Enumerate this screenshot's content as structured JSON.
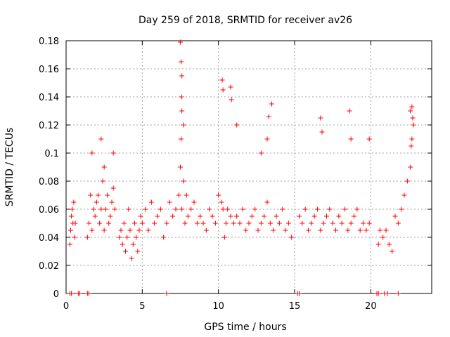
{
  "chart_data": {
    "type": "scatter",
    "title": "Day 259 of 2018, SRMTID for receiver av26",
    "xlabel": "GPS time / hours",
    "ylabel": "SRMTID / TECUs",
    "xlim": [
      0,
      24
    ],
    "ylim": [
      0,
      0.18
    ],
    "grid": true,
    "marker": "plus",
    "series_color": "#ff0000",
    "x_ticks": [
      0,
      5,
      10,
      15,
      20
    ],
    "x_tick_labels": [
      "0",
      "5",
      "10",
      "15",
      "20"
    ],
    "y_ticks": [
      0,
      0.02,
      0.04,
      0.06,
      0.08,
      0.1,
      0.12,
      0.14,
      0.16,
      0.18
    ],
    "y_tick_labels": [
      "0",
      "0.02",
      "0.04",
      "0.06",
      "0.08",
      "0.1",
      "0.12",
      "0.14",
      "0.16",
      "0.18"
    ],
    "series": [
      {
        "name": "SRMTID",
        "x": [
          0.25,
          0.3,
          0.35,
          0.4,
          0.45,
          0.5,
          0.55,
          0.6,
          1.4,
          1.5,
          1.6,
          1.7,
          1.8,
          1.9,
          2.0,
          2.1,
          2.2,
          2.3,
          2.4,
          2.5,
          2.6,
          2.7,
          2.8,
          2.9,
          3.0,
          3.1,
          3.2,
          1.7,
          2.3,
          2.5,
          3.1,
          3.5,
          3.6,
          3.7,
          3.8,
          3.9,
          4.0,
          4.1,
          4.2,
          4.3,
          4.4,
          4.5,
          4.6,
          4.7,
          4.8,
          4.9,
          5.0,
          5.2,
          5.4,
          5.6,
          5.8,
          6.0,
          6.2,
          6.4,
          6.6,
          6.8,
          7.0,
          7.2,
          7.4,
          7.5,
          7.55,
          7.6,
          7.7,
          7.8,
          7.9,
          8.0,
          8.2,
          8.4,
          8.6,
          8.8,
          7.5,
          7.55,
          7.6,
          7.58,
          7.6,
          7.7,
          9.0,
          9.2,
          9.4,
          9.6,
          9.8,
          10.0,
          10.2,
          10.3,
          10.4,
          10.5,
          10.6,
          10.8,
          11.0,
          10.25,
          10.3,
          10.8,
          10.85,
          11.2,
          11.2,
          11.4,
          11.6,
          11.8,
          12.0,
          12.2,
          12.4,
          12.6,
          12.8,
          13.0,
          13.2,
          13.4,
          13.6,
          13.8,
          14.0,
          14.2,
          14.4,
          14.6,
          14.8,
          13.3,
          13.5,
          12.8,
          13.2,
          15.3,
          15.5,
          15.7,
          15.9,
          16.1,
          16.3,
          16.5,
          16.7,
          16.9,
          17.1,
          17.3,
          17.5,
          17.7,
          17.9,
          18.1,
          18.3,
          18.5,
          18.7,
          18.9,
          19.1,
          19.3,
          19.5,
          19.7,
          19.9,
          16.7,
          16.8,
          18.6,
          18.7,
          19.9,
          20.5,
          20.6,
          20.8,
          21.0,
          21.2,
          21.4,
          21.6,
          21.8,
          22.0,
          22.2,
          22.4,
          22.6,
          22.7,
          22.8,
          22.6,
          22.7,
          22.75,
          22.65,
          0.25,
          0.35,
          0.8,
          0.9,
          1.4,
          1.5,
          6.6,
          15.2,
          15.3,
          20.4,
          20.5,
          20.9,
          21.1,
          21.8
        ],
        "y": [
          0.035,
          0.045,
          0.055,
          0.06,
          0.05,
          0.065,
          0.04,
          0.05,
          0.04,
          0.05,
          0.07,
          0.045,
          0.06,
          0.055,
          0.065,
          0.07,
          0.05,
          0.06,
          0.08,
          0.045,
          0.06,
          0.07,
          0.05,
          0.055,
          0.065,
          0.075,
          0.06,
          0.1,
          0.11,
          0.09,
          0.1,
          0.04,
          0.045,
          0.035,
          0.05,
          0.03,
          0.04,
          0.06,
          0.045,
          0.025,
          0.035,
          0.05,
          0.04,
          0.03,
          0.045,
          0.055,
          0.05,
          0.06,
          0.045,
          0.065,
          0.05,
          0.055,
          0.06,
          0.04,
          0.05,
          0.065,
          0.055,
          0.06,
          0.07,
          0.09,
          0.11,
          0.06,
          0.08,
          0.05,
          0.07,
          0.055,
          0.06,
          0.065,
          0.05,
          0.055,
          0.179,
          0.165,
          0.155,
          0.14,
          0.13,
          0.12,
          0.05,
          0.045,
          0.06,
          0.055,
          0.05,
          0.07,
          0.065,
          0.06,
          0.04,
          0.05,
          0.06,
          0.055,
          0.05,
          0.152,
          0.145,
          0.147,
          0.138,
          0.12,
          0.055,
          0.05,
          0.06,
          0.045,
          0.05,
          0.055,
          0.06,
          0.045,
          0.05,
          0.055,
          0.065,
          0.05,
          0.045,
          0.055,
          0.05,
          0.06,
          0.045,
          0.05,
          0.04,
          0.126,
          0.135,
          0.1,
          0.11,
          0.055,
          0.05,
          0.06,
          0.045,
          0.05,
          0.055,
          0.06,
          0.045,
          0.05,
          0.055,
          0.06,
          0.05,
          0.045,
          0.055,
          0.05,
          0.06,
          0.045,
          0.05,
          0.055,
          0.06,
          0.045,
          0.05,
          0.045,
          0.05,
          0.125,
          0.115,
          0.13,
          0.11,
          0.11,
          0.035,
          0.045,
          0.04,
          0.045,
          0.035,
          0.03,
          0.055,
          0.05,
          0.06,
          0.07,
          0.08,
          0.09,
          0.11,
          0.12,
          0.13,
          0.133,
          0.125,
          0.105,
          0,
          0,
          0,
          0,
          0,
          0,
          0,
          0,
          0,
          0,
          0,
          0,
          0,
          0
        ]
      }
    ]
  }
}
